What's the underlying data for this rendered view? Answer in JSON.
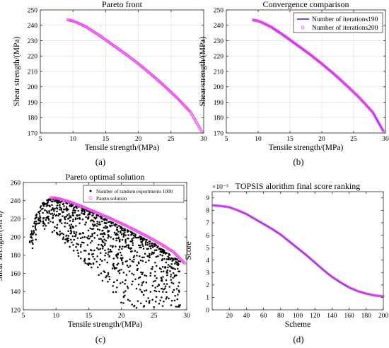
{
  "panel_labels": [
    "(a)",
    "(b)",
    "(c)",
    "(d)"
  ],
  "chart_data": [
    {
      "type": "scatter",
      "title": "Pareto front",
      "xlabel": "Tensile strength/(MPa)",
      "ylabel": "Shear strength/(MPa)",
      "xlim": [
        5,
        30
      ],
      "ylim": [
        170,
        250
      ],
      "xticks": [
        5,
        10,
        15,
        20,
        25,
        30
      ],
      "yticks": [
        170,
        180,
        190,
        200,
        210,
        220,
        230,
        240,
        250
      ],
      "grid": true,
      "series": [
        {
          "color": "#ee44ee",
          "marker": "open-circle",
          "n": 200,
          "x": [
            9.2,
            9.8,
            10.5,
            12,
            14,
            16,
            18,
            20,
            22,
            24,
            26,
            28,
            29.7
          ],
          "y": [
            243.5,
            243,
            242,
            239,
            233.5,
            227.5,
            221.5,
            215,
            208,
            200.5,
            192.5,
            183.5,
            171
          ]
        }
      ]
    },
    {
      "type": "line",
      "title": "Convergence comparison",
      "xlabel": "Tensile strength/(MPa)",
      "ylabel": "Shear strength/(MPa)",
      "xlim": [
        5,
        30
      ],
      "ylim": [
        170,
        250
      ],
      "xticks": [
        5,
        10,
        15,
        20,
        25,
        30
      ],
      "yticks": [
        170,
        180,
        190,
        200,
        210,
        220,
        230,
        240,
        250
      ],
      "grid": true,
      "legend": "top-right",
      "series": [
        {
          "name": "Number of iterations190",
          "color": "#2222cc",
          "marker": "line",
          "x": [
            9.2,
            9.8,
            10.5,
            12,
            14,
            16,
            18,
            20,
            22,
            24,
            26,
            28,
            29.7
          ],
          "y": [
            243.5,
            243,
            242,
            239,
            233.5,
            227.5,
            221.5,
            215,
            208,
            200.5,
            192.5,
            183.5,
            171
          ]
        },
        {
          "name": "Number of iterations200",
          "color": "#ee44ee",
          "marker": "open-circle",
          "n": 200,
          "x": [
            9.2,
            9.8,
            10.5,
            12,
            14,
            16,
            18,
            20,
            22,
            24,
            26,
            28,
            29.7
          ],
          "y": [
            243.5,
            243,
            242,
            239,
            233.5,
            227.5,
            221.5,
            215,
            208,
            200.5,
            192.5,
            183.5,
            171
          ]
        }
      ]
    },
    {
      "type": "scatter",
      "title": "Pareto optimal solution",
      "xlabel": "Tensile strength/(MPa)",
      "ylabel": "Shear strength/(MPa)",
      "xlim": [
        5,
        30
      ],
      "ylim": [
        120,
        260
      ],
      "xticks": [
        5,
        10,
        15,
        20,
        25,
        30
      ],
      "yticks": [
        120,
        140,
        160,
        180,
        200,
        220,
        240,
        260
      ],
      "grid": false,
      "legend": "top-right",
      "series": [
        {
          "name": "Number of random experiments 1000",
          "color": "#000000",
          "marker": "filled-dot",
          "n": 1000,
          "envelope_x": [
            6,
            7,
            8,
            9,
            10,
            12,
            15,
            20,
            25,
            29
          ],
          "envelope_y": [
            200,
            225,
            238,
            242,
            242,
            238,
            229,
            211,
            193,
            173
          ],
          "x_range": [
            6,
            29
          ],
          "y_range": [
            122,
            243
          ]
        },
        {
          "name": "Pareto solution",
          "color": "#ee44ee",
          "marker": "open-circle",
          "n": 200,
          "x": [
            9.2,
            9.8,
            10.5,
            12,
            14,
            16,
            18,
            20,
            22,
            24,
            26,
            28,
            29.7
          ],
          "y": [
            243.5,
            243,
            242,
            239,
            233.5,
            227.5,
            221.5,
            215,
            208,
            200.5,
            192.5,
            183.5,
            171
          ]
        }
      ]
    },
    {
      "type": "line",
      "title": "TOPSIS alorithm final score ranking",
      "xlabel": "Scheme",
      "ylabel": "Score",
      "exponent": "×10⁻³",
      "xlim": [
        0,
        200
      ],
      "ylim": [
        0,
        9.5
      ],
      "xticks": [
        20,
        40,
        60,
        80,
        100,
        120,
        140,
        160,
        180,
        200
      ],
      "yticks": [
        0,
        1,
        2,
        3,
        4,
        5,
        6,
        7,
        8,
        9
      ],
      "grid": false,
      "series": [
        {
          "color": "#2222cc",
          "overlay_color": "#ee44ee",
          "marker": "line+open-circle",
          "x": [
            1,
            10,
            20,
            30,
            40,
            50,
            60,
            70,
            80,
            90,
            100,
            110,
            120,
            130,
            140,
            150,
            160,
            170,
            180,
            190,
            200
          ],
          "y": [
            8.4,
            8.35,
            8.25,
            8.0,
            7.7,
            7.3,
            6.9,
            6.5,
            6.05,
            5.5,
            4.95,
            4.4,
            3.8,
            3.2,
            2.65,
            2.2,
            1.8,
            1.5,
            1.3,
            1.15,
            1.08
          ]
        }
      ]
    }
  ]
}
